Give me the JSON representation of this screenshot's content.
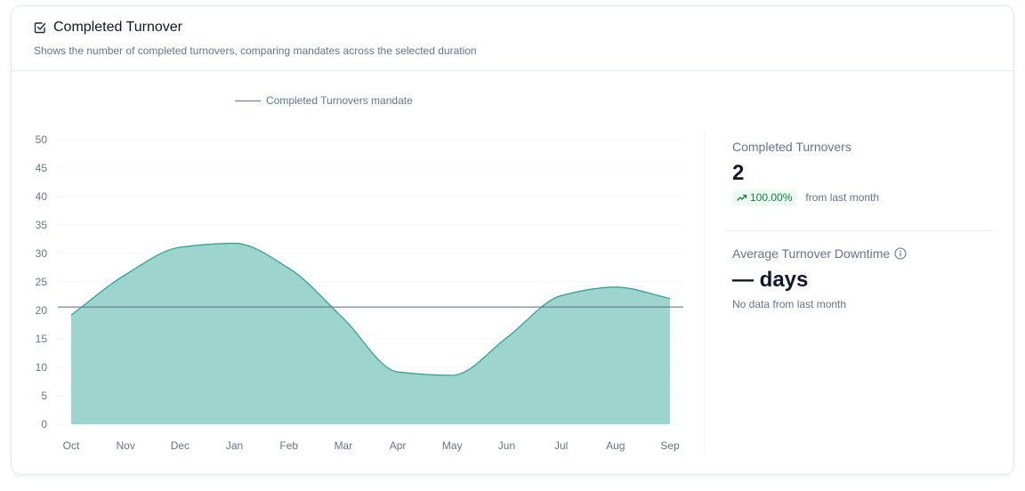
{
  "header": {
    "icon": "checkbox-checked-icon",
    "title": "Completed Turnover",
    "subtitle": "Shows the number of completed turnovers, comparing mandates across the selected duration"
  },
  "stats": {
    "completed": {
      "label": "Completed Turnovers",
      "value": "2",
      "trend_icon": "trending-up-icon",
      "trend_value": "100.00%",
      "trend_suffix": "from last month",
      "trend_color": "#15803d"
    },
    "downtime": {
      "label": "Average Turnover Downtime",
      "info_icon": "info-icon",
      "value": "— days",
      "note": "No data from last month"
    }
  },
  "chart_data": {
    "type": "area",
    "title": "",
    "xlabel": "",
    "ylabel": "",
    "categories": [
      "Oct",
      "Nov",
      "Dec",
      "Jan",
      "Feb",
      "Mar",
      "Apr",
      "May",
      "Jun",
      "Jul",
      "Aug",
      "Sep"
    ],
    "yticks": [
      0,
      5,
      10,
      15,
      20,
      25,
      30,
      35,
      40,
      45,
      50
    ],
    "ylim": [
      0,
      50
    ],
    "grid": true,
    "legend": {
      "position": "top-center",
      "entries": [
        "Completed Turnovers mandate"
      ]
    },
    "series": [
      {
        "name": "Completed Turnovers",
        "type": "area",
        "color": "#2a9d8f",
        "fill": "#9dd4cd",
        "values": [
          19.2,
          26.3,
          31.1,
          31.8,
          27.4,
          18.6,
          9.2,
          8.6,
          15.2,
          22.6,
          24.1,
          22.1
        ]
      },
      {
        "name": "Completed Turnovers mandate",
        "type": "line",
        "color": "#64748b",
        "value": 20.6
      }
    ]
  }
}
